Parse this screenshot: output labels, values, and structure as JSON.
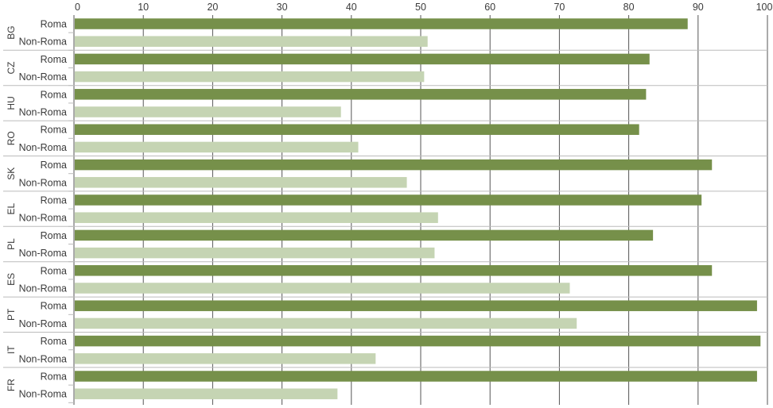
{
  "colors": {
    "roma": "#76904a",
    "non_roma": "#c5d4b3",
    "grid": "#555555",
    "separator": "#bbbbbb",
    "text": "#3a3a3a"
  },
  "chart_data": {
    "type": "bar",
    "orientation": "horizontal",
    "title": "",
    "xlabel": "",
    "ylabel": "",
    "xlim": [
      0,
      100
    ],
    "x_ticks": [
      0,
      10,
      20,
      30,
      40,
      50,
      60,
      70,
      80,
      90,
      100
    ],
    "axis_position": "top",
    "grid": true,
    "legend": "none",
    "categories": [
      "BG",
      "CZ",
      "HU",
      "RO",
      "SK",
      "EL",
      "PL",
      "ES",
      "PT",
      "IT",
      "FR"
    ],
    "series": [
      {
        "name": "Roma",
        "color_key": "roma",
        "values": [
          88.5,
          83,
          82.5,
          81.5,
          92,
          90.5,
          83.5,
          92,
          98.5,
          99,
          98.5
        ]
      },
      {
        "name": "Non-Roma",
        "color_key": "non_roma",
        "values": [
          51,
          50.5,
          38.5,
          41,
          48,
          52.5,
          52,
          71.5,
          72.5,
          43.5,
          38
        ]
      }
    ]
  }
}
